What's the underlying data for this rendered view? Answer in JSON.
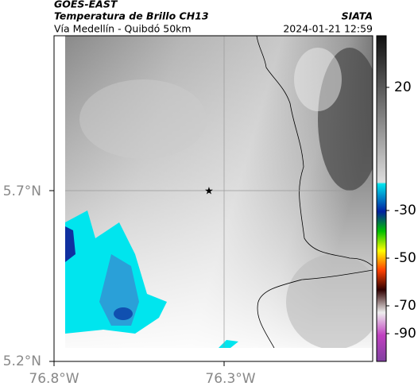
{
  "header": {
    "satellite": "GOES-EAST",
    "product": "Temperatura de Brillo CH13",
    "region": "Vía Medellín - Quibdó 50km",
    "source": "SIATA",
    "datetime": "2024-01-21 12:59"
  },
  "axes": {
    "lat_labels": [
      "5.7°N",
      "5.2°N"
    ],
    "lon_labels": [
      "76.8°W",
      "76.3°W"
    ]
  },
  "colorbar": {
    "labels": [
      "20",
      "-30",
      "-50",
      "-70",
      "-90"
    ]
  }
}
